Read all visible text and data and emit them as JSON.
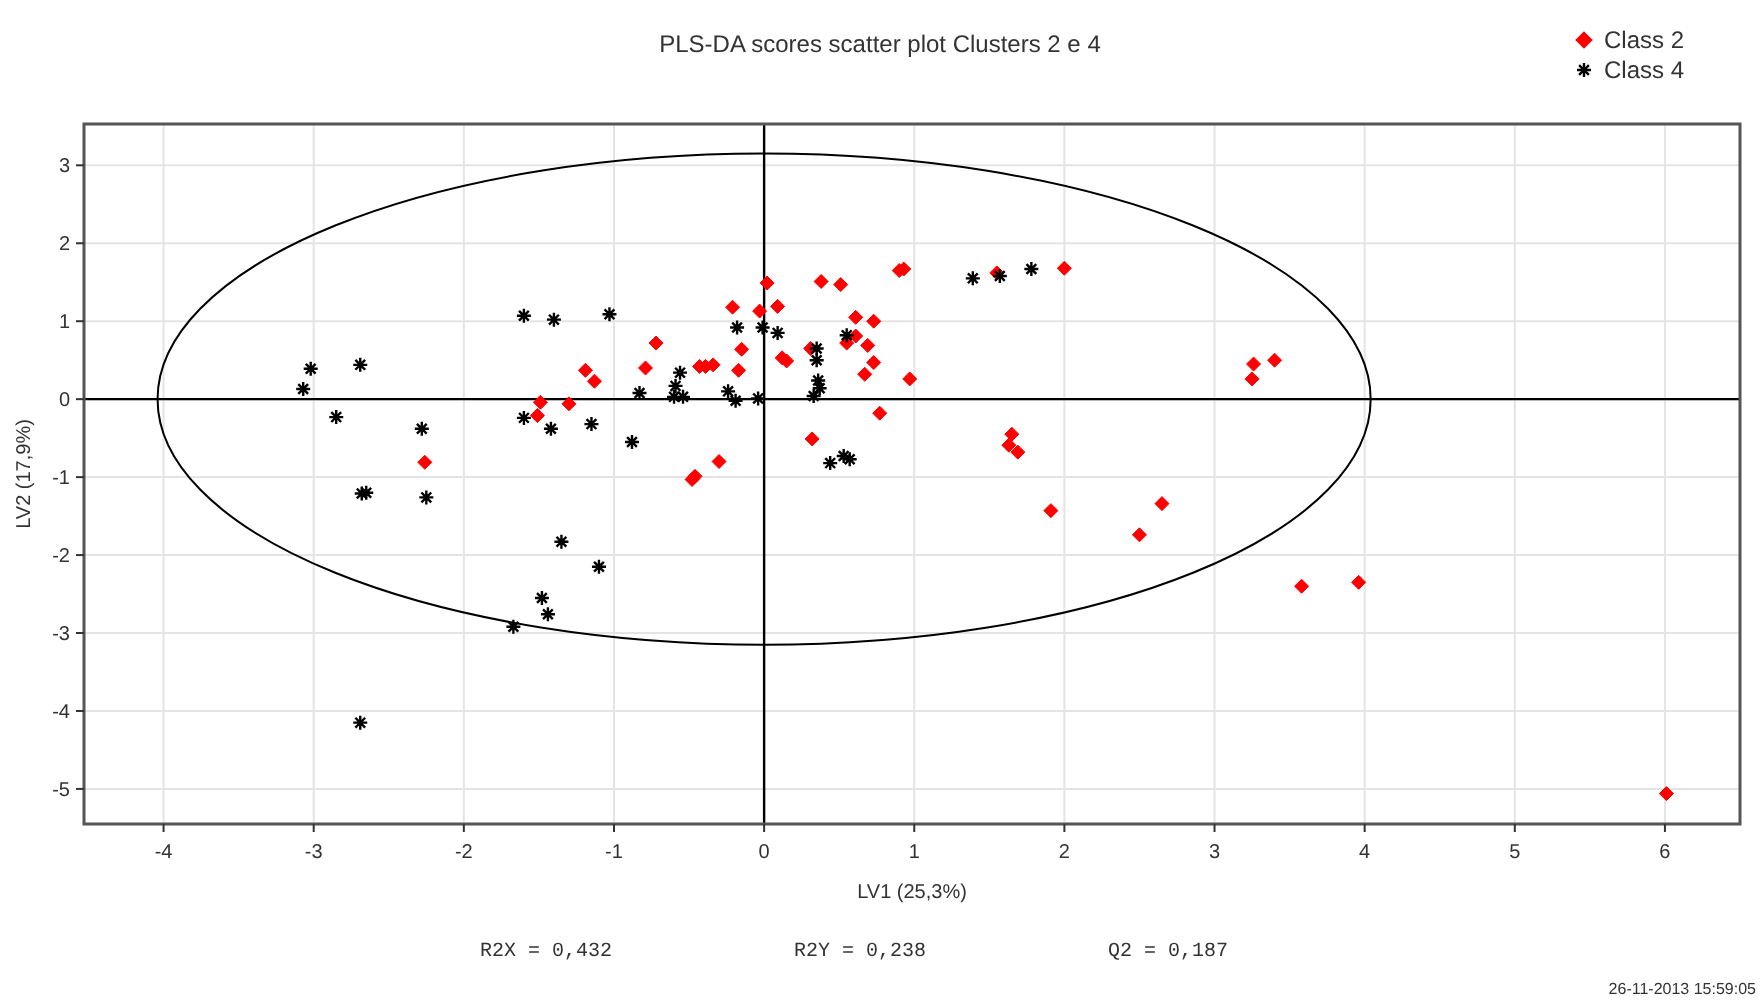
{
  "chart_data": {
    "type": "scatter",
    "title": "PLS-DA scores scatter plot Clusters 2 e 4",
    "xlabel": "LV1 (25,3%)",
    "ylabel": "LV2 (17,9%)",
    "xlim": [
      -4.53,
      6.5
    ],
    "ylim": [
      -5.45,
      3.53
    ],
    "xticks": [
      -4,
      -3,
      -2,
      -1,
      0,
      1,
      2,
      3,
      4,
      5,
      6
    ],
    "yticks": [
      -5,
      -4,
      -3,
      -2,
      -1,
      0,
      1,
      2,
      3
    ],
    "grid": true,
    "legend": "top right",
    "annotations": [
      "R2X = 0,432",
      "R2Y = 0,238",
      "Q2 = 0,187",
      "26-11-2013 15:59:05"
    ],
    "series": [
      {
        "name": "Class 2",
        "color": "#ff0000",
        "marker": "diamond",
        "x": [
          -1.49,
          -1.51,
          -1.3,
          -1.19,
          -1.13,
          -2.26,
          -0.72,
          -0.79,
          -0.43,
          -0.39,
          -0.34,
          -0.21,
          -0.15,
          -0.17,
          -0.03,
          0.02,
          0.09,
          0.12,
          0.15,
          0.38,
          0.51,
          0.31,
          0.61,
          0.73,
          0.55,
          0.61,
          0.69,
          0.73,
          0.67,
          0.97,
          0.77,
          0.32,
          -0.3,
          -0.46,
          -0.48,
          0.9,
          0.93,
          1.55,
          2.0,
          1.65,
          1.63,
          1.69,
          1.91,
          2.5,
          3.26,
          3.4,
          3.25,
          2.65,
          3.58,
          3.96,
          6.01
        ],
        "values": [
          -0.04,
          -0.21,
          -0.06,
          0.37,
          0.23,
          -0.81,
          0.72,
          0.4,
          0.42,
          0.42,
          0.44,
          1.18,
          0.64,
          0.37,
          1.13,
          1.49,
          1.19,
          0.53,
          0.49,
          1.51,
          1.47,
          0.65,
          1.05,
          1.0,
          0.72,
          0.81,
          0.69,
          0.47,
          0.32,
          0.26,
          -0.18,
          -0.51,
          -0.8,
          -0.99,
          -1.03,
          1.65,
          1.67,
          1.62,
          1.68,
          -0.45,
          -0.59,
          -0.68,
          -1.43,
          -1.74,
          0.45,
          0.5,
          0.26,
          -1.34,
          -2.4,
          -2.35,
          -5.06
        ]
      },
      {
        "name": "Class 4",
        "color": "#000000",
        "marker": "cross",
        "x": [
          -3.02,
          -3.07,
          -2.69,
          -2.85,
          -2.28,
          -2.65,
          -2.68,
          -2.25,
          -2.69,
          -1.6,
          -1.4,
          -1.6,
          -1.42,
          -1.15,
          -1.35,
          -1.48,
          -1.44,
          -1.67,
          -1.1,
          -1.03,
          -0.88,
          -0.83,
          -0.56,
          -0.59,
          -0.6,
          -0.54,
          -0.24,
          -0.19,
          -0.04,
          -0.18,
          -0.01,
          0.09,
          0.35,
          0.35,
          0.36,
          0.37,
          0.33,
          0.55,
          0.44,
          0.53,
          0.57,
          1.39,
          1.57,
          1.78
        ],
        "values": [
          0.39,
          0.13,
          0.44,
          -0.23,
          -0.38,
          -1.2,
          -1.21,
          -1.26,
          -4.15,
          1.07,
          1.02,
          -0.24,
          -0.38,
          -0.32,
          -1.83,
          -2.55,
          -2.76,
          -2.92,
          -2.15,
          1.09,
          -0.55,
          0.08,
          0.34,
          0.17,
          0.03,
          0.03,
          0.1,
          -0.02,
          0.01,
          0.92,
          0.92,
          0.85,
          0.65,
          0.5,
          0.24,
          0.14,
          0.04,
          0.82,
          -0.82,
          -0.73,
          -0.77,
          1.55,
          1.58,
          1.67
        ]
      }
    ]
  }
}
